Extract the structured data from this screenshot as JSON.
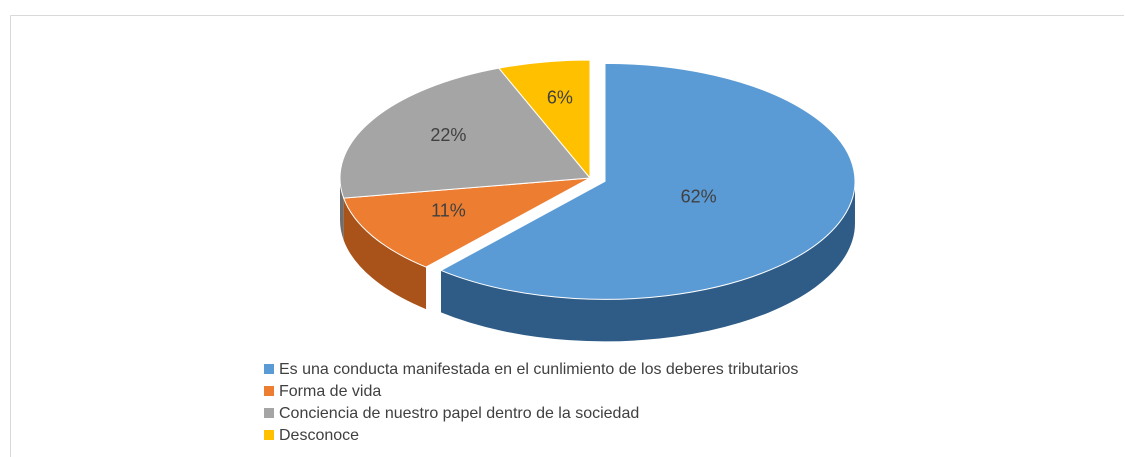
{
  "chart_data": {
    "type": "pie",
    "categories": [
      "Es una conducta manifestada en el cunlimiento de los deberes tributarios",
      "Forma de vida",
      "Conciencia de nuestro papel dentro de la sociedad",
      "Desconoce"
    ],
    "values": [
      62,
      11,
      22,
      6
    ],
    "value_labels": [
      "62%",
      "11%",
      "22%",
      "6%"
    ],
    "colors": [
      "#5b9bd5",
      "#ed7d31",
      "#a5a5a5",
      "#ffc000"
    ],
    "side_colors": [
      "#2e5c87",
      "#a9521a",
      "#6e6e6e",
      "#b88a00"
    ]
  }
}
